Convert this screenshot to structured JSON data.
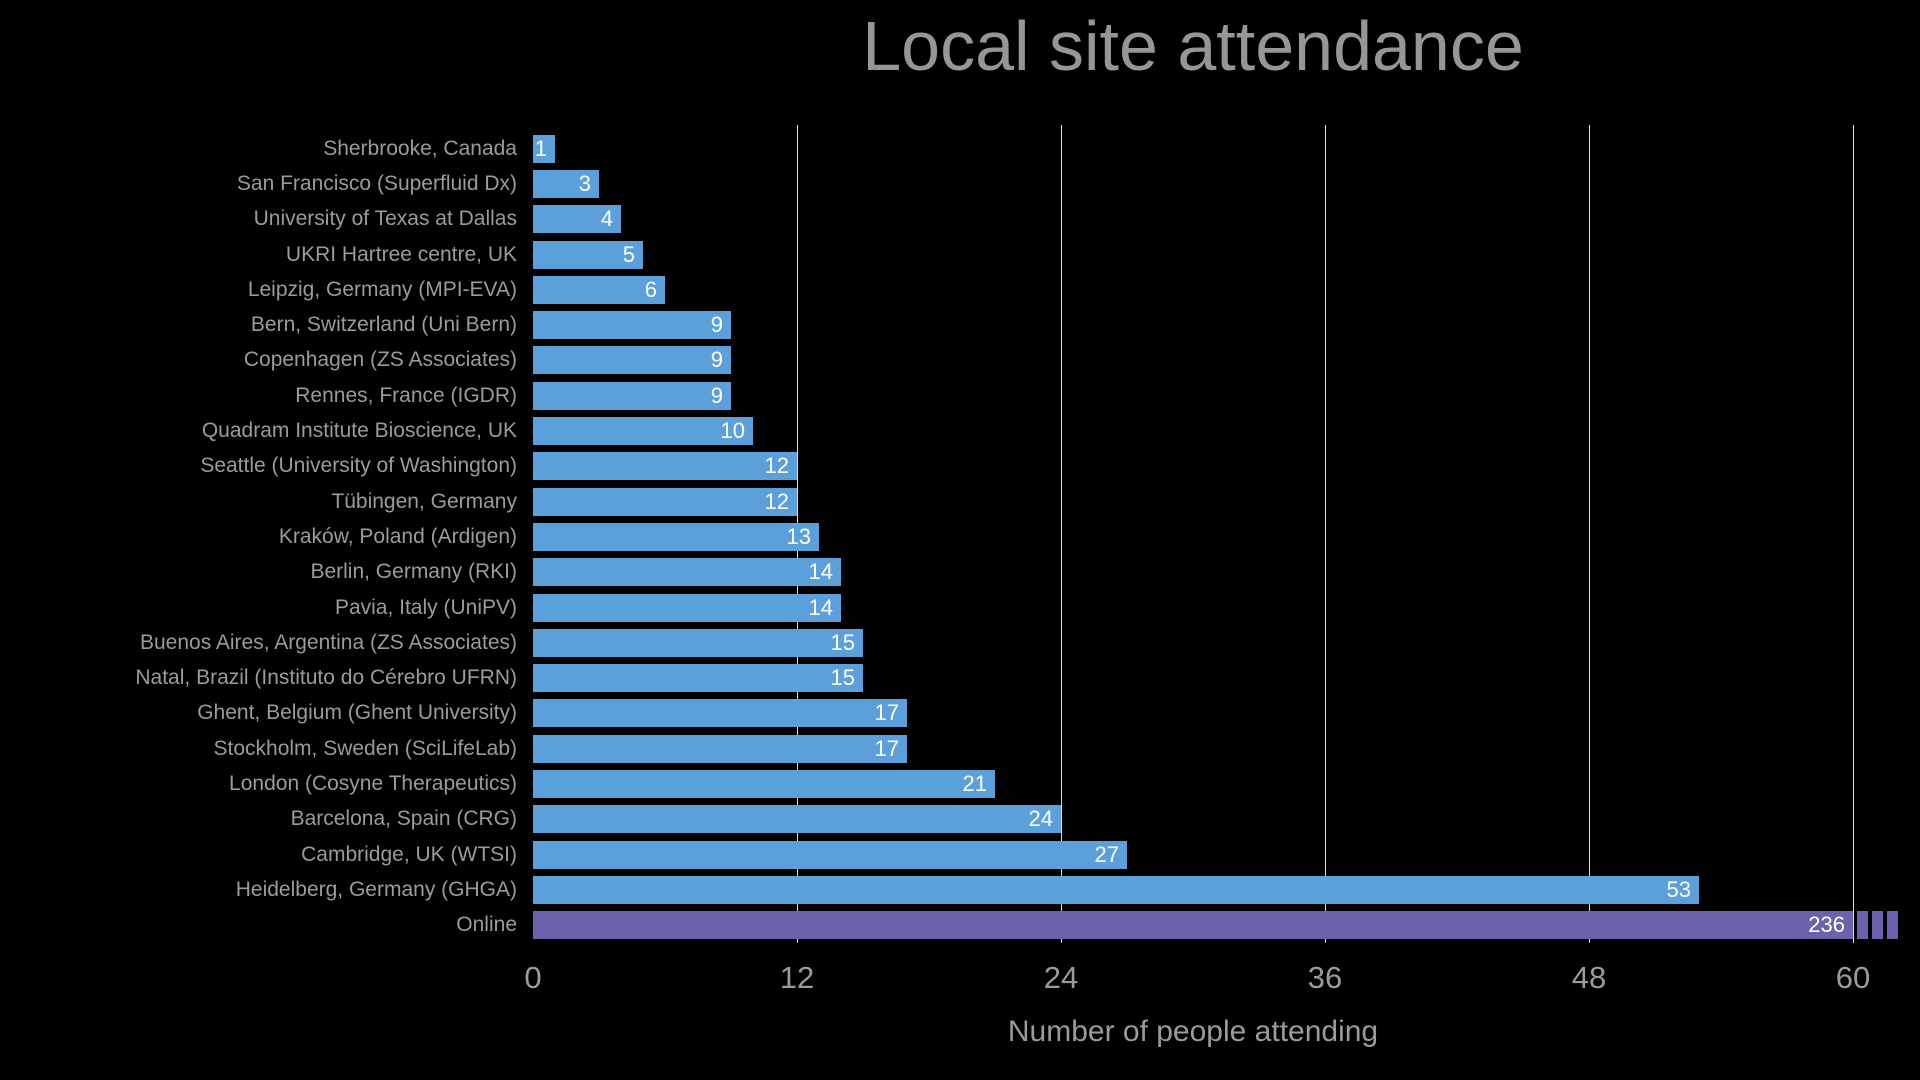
{
  "chart_data": {
    "type": "bar",
    "orientation": "horizontal",
    "title": "Local site attendance",
    "xlabel": "Number of people attending",
    "categories": [
      "Sherbrooke, Canada",
      "San Francisco (Superfluid Dx)",
      "University of Texas at Dallas",
      "UKRI Hartree centre, UK",
      "Leipzig, Germany (MPI-EVA)",
      "Bern, Switzerland (Uni Bern)",
      "Copenhagen (ZS Associates)",
      "Rennes, France (IGDR)",
      "Quadram Institute Bioscience, UK",
      "Seattle (University of Washington)",
      "Tübingen, Germany",
      "Kraków, Poland (Ardigen)",
      "Berlin, Germany (RKI)",
      "Pavia, Italy (UniPV)",
      "Buenos Aires, Argentina (ZS Associates)",
      "Natal, Brazil (Instituto do Cérebro UFRN)",
      "Ghent, Belgium (Ghent University)",
      "Stockholm, Sweden (SciLifeLab)",
      "London (Cosyne Therapeutics)",
      "Barcelona, Spain (CRG)",
      "Cambridge, UK (WTSI)",
      "Heidelberg, Germany (GHGA)",
      "Online"
    ],
    "values": [
      1,
      3,
      4,
      5,
      6,
      9,
      9,
      9,
      10,
      12,
      12,
      13,
      14,
      14,
      15,
      15,
      17,
      17,
      21,
      24,
      27,
      53,
      236
    ],
    "xlim": [
      0,
      60
    ],
    "xticks": [
      0,
      12,
      24,
      36,
      48,
      60
    ],
    "legend": "none",
    "grid": "vertical gridlines at x ticks, behind bars",
    "value_labels": "white, inside right end of each bar",
    "clipped_bar": {
      "category": "Online",
      "value": 236,
      "clipped_at_x": 60,
      "break_marks": 3
    },
    "colors": {
      "bar": "#5CA0DB",
      "online_bar": "#6A63AB",
      "value_label": "#FFFFFF",
      "axis_text": "#9B9B9B",
      "title_text": "#969696",
      "gridline": "#DCDCDC",
      "background": "#000000"
    }
  }
}
